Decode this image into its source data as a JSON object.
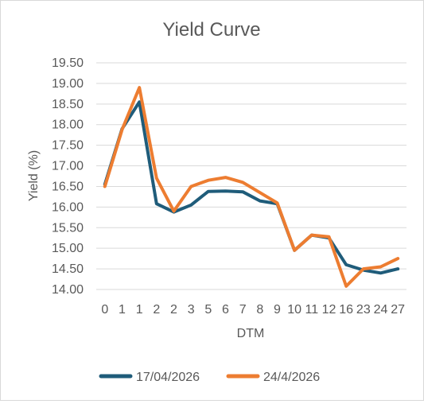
{
  "chart_data": {
    "type": "line",
    "title": "Yield Curve",
    "xlabel": "DTM",
    "ylabel": "Yield (%)",
    "ylim": [
      14.0,
      19.5
    ],
    "ytick_step": 0.5,
    "grid": true,
    "legend_position": "bottom",
    "categories": [
      "0",
      "1",
      "1",
      "2",
      "2",
      "3",
      "5",
      "6",
      "7",
      "8",
      "9",
      "10",
      "11",
      "12",
      "16",
      "23",
      "24",
      "27"
    ],
    "series": [
      {
        "name": "17/04/2026",
        "color": "#1f5c7a",
        "values": [
          16.55,
          17.9,
          18.55,
          16.08,
          15.88,
          16.05,
          16.38,
          16.39,
          16.37,
          16.15,
          16.08,
          14.95,
          15.32,
          15.25,
          14.6,
          14.47,
          14.4,
          14.5
        ]
      },
      {
        "name": "24/4/2026",
        "color": "#ed7d31",
        "values": [
          16.5,
          17.88,
          18.9,
          16.7,
          15.9,
          16.5,
          16.65,
          16.72,
          16.6,
          16.35,
          16.1,
          14.95,
          15.32,
          15.28,
          14.08,
          14.5,
          14.55,
          14.75
        ]
      }
    ]
  }
}
